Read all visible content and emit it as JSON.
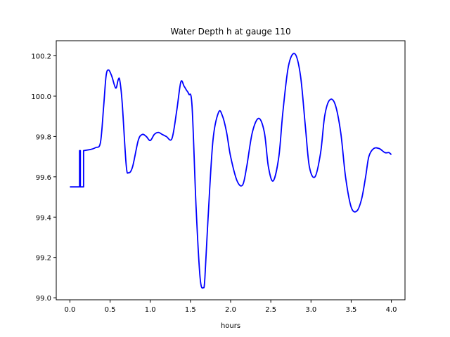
{
  "chart_data": {
    "type": "line",
    "title": "Water Depth h at gauge 110",
    "xlabel": "hours",
    "ylabel": "",
    "xlim": [
      -0.17,
      4.17
    ],
    "ylim": [
      98.99,
      100.275
    ],
    "grid": false,
    "xticks": [
      0.0,
      0.5,
      1.0,
      1.5,
      2.0,
      2.5,
      3.0,
      3.5,
      4.0
    ],
    "xtick_labels": [
      "0.0",
      "0.5",
      "1.0",
      "1.5",
      "2.0",
      "2.5",
      "3.0",
      "3.5",
      "4.0"
    ],
    "yticks": [
      99.0,
      99.2,
      99.4,
      99.6,
      99.8,
      100.0,
      100.2
    ],
    "ytick_labels": [
      "99.0",
      "99.2",
      "99.4",
      "99.6",
      "99.8",
      "100.0",
      "100.2"
    ],
    "series": [
      {
        "color": "#0000ff",
        "x": [
          0.0,
          0.12,
          0.12,
          0.13,
          0.13,
          0.17,
          0.17,
          0.175,
          0.175,
          0.25,
          0.32,
          0.38,
          0.42,
          0.45,
          0.48,
          0.52,
          0.57,
          0.6,
          0.62,
          0.65,
          0.7,
          0.73,
          0.78,
          0.85,
          0.9,
          0.95,
          1.0,
          1.05,
          1.1,
          1.15,
          1.2,
          1.27,
          1.33,
          1.38,
          1.42,
          1.45,
          1.48,
          1.52,
          1.57,
          1.62,
          1.66,
          1.68,
          1.72,
          1.78,
          1.85,
          1.9,
          1.95,
          2.0,
          2.08,
          2.15,
          2.2,
          2.27,
          2.35,
          2.42,
          2.47,
          2.53,
          2.6,
          2.65,
          2.72,
          2.8,
          2.87,
          2.93,
          2.98,
          3.05,
          3.12,
          3.17,
          3.23,
          3.3,
          3.37,
          3.43,
          3.5,
          3.57,
          3.63,
          3.68,
          3.72,
          3.78,
          3.85,
          3.92,
          3.97,
          4.0
        ],
        "y": [
          99.55,
          99.55,
          99.73,
          99.73,
          99.55,
          99.55,
          99.73,
          99.73,
          99.73,
          99.735,
          99.745,
          99.77,
          99.95,
          100.1,
          100.13,
          100.1,
          100.04,
          100.08,
          100.08,
          99.97,
          99.66,
          99.62,
          99.65,
          99.78,
          99.81,
          99.8,
          99.78,
          99.81,
          99.82,
          99.81,
          99.8,
          99.79,
          99.93,
          100.07,
          100.05,
          100.03,
          100.01,
          99.95,
          99.45,
          99.1,
          99.05,
          99.1,
          99.4,
          99.78,
          99.92,
          99.9,
          99.82,
          99.7,
          99.58,
          99.56,
          99.65,
          99.82,
          99.89,
          99.82,
          99.65,
          99.58,
          99.7,
          99.92,
          100.15,
          100.21,
          100.1,
          99.85,
          99.65,
          99.6,
          99.72,
          99.9,
          99.98,
          99.96,
          99.82,
          99.6,
          99.45,
          99.43,
          99.49,
          99.6,
          99.7,
          99.74,
          99.74,
          99.72,
          99.72,
          99.71
        ]
      }
    ]
  }
}
